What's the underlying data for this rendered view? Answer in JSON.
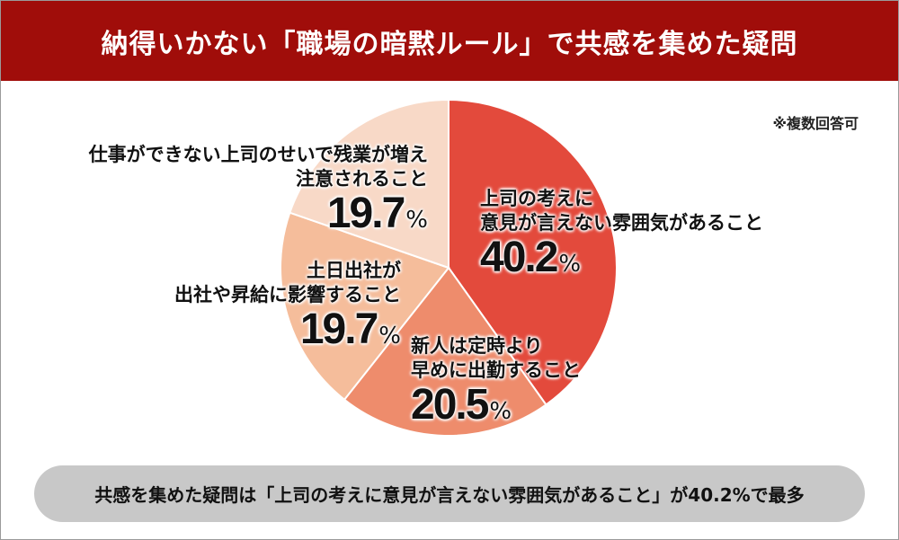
{
  "header": {
    "title": "納得いかない「職場の暗黙ルール」で共感を集めた疑問"
  },
  "note": "※複数回答可",
  "colors": {
    "header_bg": "#a00d0a",
    "slice_1": "#e34a3c",
    "slice_2": "#ee8c6c",
    "slice_3": "#f5bd9b",
    "slice_4": "#f8d9c7"
  },
  "chart_data": {
    "type": "pie",
    "title": "",
    "slices": [
      {
        "label_lines": [
          "上司の考えに",
          "意見が言えない雰囲気があること"
        ],
        "value": 40.2,
        "value_text": "40.2",
        "unit": "%",
        "color": "#e34a3c"
      },
      {
        "label_lines": [
          "新人は定時より",
          "早めに出勤すること"
        ],
        "value": 20.5,
        "value_text": "20.5",
        "unit": "%",
        "color": "#ee8c6c"
      },
      {
        "label_lines": [
          "土日出社が",
          "出社や昇給に影響すること"
        ],
        "value": 19.7,
        "value_text": "19.7",
        "unit": "%",
        "color": "#f5bd9b"
      },
      {
        "label_lines": [
          "仕事ができない上司のせいで残業が増え",
          "注意されること"
        ],
        "value": 19.7,
        "value_text": "19.7",
        "unit": "%",
        "color": "#f8d9c7"
      }
    ]
  },
  "footer": {
    "text": "共感を集めた疑問は「上司の考えに意見が言えない雰囲気があること」が40.2%で最多"
  }
}
